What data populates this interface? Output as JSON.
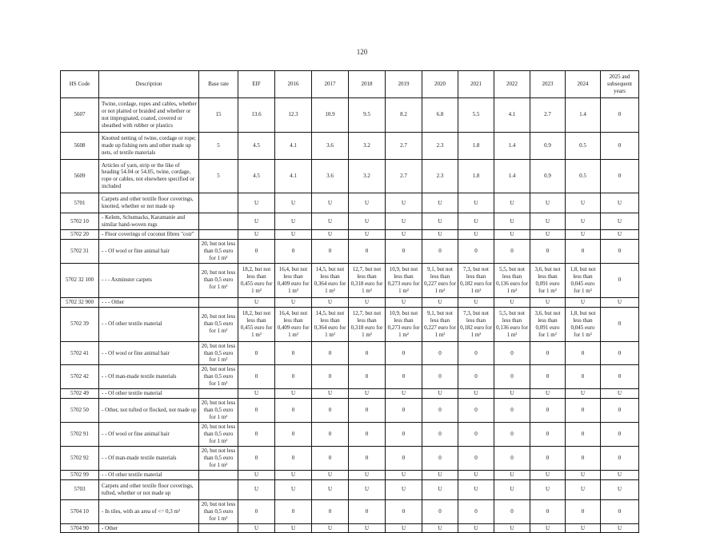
{
  "page": {
    "number": "120"
  },
  "table": {
    "headers": [
      "HS Code",
      "Description",
      "Base rate",
      "EIF",
      "2016",
      "2017",
      "2018",
      "2019",
      "2020",
      "2021",
      "2022",
      "2023",
      "2024",
      "2025 and subsequent years"
    ],
    "rows": [
      {
        "code": "5607",
        "desc": "Twine, cordage, ropes and cables, whether or not plaited or braided and whether or not impregnated, coated, covered or sheathed with rubber or plastics",
        "base": "15",
        "vals": [
          "13.6",
          "12.3",
          "10.9",
          "9.5",
          "8.2",
          "6.8",
          "5.5",
          "4.1",
          "2.7",
          "1.4",
          "0"
        ]
      },
      {
        "code": "5608",
        "desc": "Knotted netting of twine, cordage or rope; made up fishing nets and other made up nets, of textile materials",
        "base": "5",
        "vals": [
          "4.5",
          "4.1",
          "3.6",
          "3.2",
          "2.7",
          "2.3",
          "1.8",
          "1.4",
          "0.9",
          "0.5",
          "0"
        ]
      },
      {
        "code": "5609",
        "desc": "Articles of yarn, strip or the like of heading 54.04 or 54.05, twine, cordage, rope or cables, not elsewhere specified or included",
        "base": "5",
        "vals": [
          "4.5",
          "4.1",
          "3.6",
          "3.2",
          "2.7",
          "2.3",
          "1.8",
          "1.4",
          "0.9",
          "0.5",
          "0"
        ]
      },
      {
        "code": "5701",
        "desc": "Carpets and other textile floor coverings, knotted, whether or not made up",
        "base": "",
        "vals": [
          "U",
          "U",
          "U",
          "U",
          "U",
          "U",
          "U",
          "U",
          "U",
          "U",
          "U"
        ]
      },
      {
        "code": "5702 10",
        "desc": "- Kelem, Schumacks, Karamanie and similar hand-woven rugs",
        "base": "",
        "vals": [
          "U",
          "U",
          "U",
          "U",
          "U",
          "U",
          "U",
          "U",
          "U",
          "U",
          "U"
        ]
      },
      {
        "code": "5702 20",
        "desc": "- Floor coverings of coconut fibres \"coir\"",
        "base": "",
        "vals": [
          "U",
          "U",
          "U",
          "U",
          "U",
          "U",
          "U",
          "U",
          "U",
          "U",
          "U"
        ]
      },
      {
        "code": "5702 31",
        "desc": "- - Of wool or fine animal hair",
        "base": "20, but not less than 0,5 euro for 1 m²",
        "vals": [
          "0",
          "0",
          "0",
          "0",
          "0",
          "0",
          "0",
          "0",
          "0",
          "0",
          "0"
        ]
      },
      {
        "code": "5702 32 100",
        "desc": "- - - Axminster carpets",
        "base": "20, but not less than 0,5 euro for 1 m²",
        "vals": [
          "18,2, but not less than 0,455 euro for 1 m²",
          "16,4, but not less than 0,409 euro for 1 m²",
          "14,5, but not less than 0,364 euro for 1 m²",
          "12,7, but not less than 0,318 euro for 1 m²",
          "10,9, but not less than 0,273 euro for 1 m²",
          "9,1, but not less than 0,227 euro for 1 m²",
          "7,3, but not less than 0,182 euro for 1 m²",
          "5,5, but not less than 0,136 euro for 1 m²",
          "3,6, but not less than 0,091 euro for 1 m²",
          "1,8, but not less than 0,045 euro for 1 m²",
          "0"
        ]
      },
      {
        "code": "5702 32 900",
        "desc": "- - - Other",
        "base": "",
        "vals": [
          "U",
          "U",
          "U",
          "U",
          "U",
          "U",
          "U",
          "U",
          "U",
          "U",
          "U"
        ]
      },
      {
        "code": "5702 39",
        "desc": "- - Of other textile material",
        "base": "20, but not less than 0,5 euro for 1 m²",
        "vals": [
          "18,2, but not less than 0,455 euro for 1 m²",
          "16,4, but not less than 0,409 euro for 1 m²",
          "14,5, but not less than 0,364 euro for 1 m²",
          "12,7, but not less than 0,318 euro for 1 m²",
          "10,9, but not less than 0,273 euro for 1 m²",
          "9,1, but not less than 0,227 euro for 1 m²",
          "7,3, but not less than 0,182 euro for 1 m²",
          "5,5, but not less than 0,136 euro for 1 m²",
          "3,6, but not less than 0,091 euro for 1 m²",
          "1,8, but not less than 0,045 euro for 1 m²",
          "0"
        ]
      },
      {
        "code": "5702 41",
        "desc": "- - Of wool or fine animal hair",
        "base": "20, but not less than 0,5 euro for 1 m²",
        "vals": [
          "0",
          "0",
          "0",
          "0",
          "0",
          "0",
          "0",
          "0",
          "0",
          "0",
          "0"
        ]
      },
      {
        "code": "5702 42",
        "desc": "- - Of man-made textile materials",
        "base": "20, but not less than 0,5 euro for 1 m²",
        "vals": [
          "0",
          "0",
          "0",
          "0",
          "0",
          "0",
          "0",
          "0",
          "0",
          "0",
          "0"
        ]
      },
      {
        "code": "5702 49",
        "desc": "- - Of other textile material",
        "base": "",
        "vals": [
          "U",
          "U",
          "U",
          "U",
          "U",
          "U",
          "U",
          "U",
          "U",
          "U",
          "U"
        ]
      },
      {
        "code": "5702 50",
        "desc": "- Other, not tufted or flocked, not made up",
        "base": "20, but not less than 0,5 euro for 1 m²",
        "vals": [
          "0",
          "0",
          "0",
          "0",
          "0",
          "0",
          "0",
          "0",
          "0",
          "0",
          "0"
        ]
      },
      {
        "code": "5702 91",
        "desc": "- - Of wool or fine animal hair",
        "base": "20, but not less than 0,5 euro for 1 m²",
        "vals": [
          "0",
          "0",
          "0",
          "0",
          "0",
          "0",
          "0",
          "0",
          "0",
          "0",
          "0"
        ]
      },
      {
        "code": "5702 92",
        "desc": "- - Of man-made textile materials",
        "base": "20, but not less than 0,5 euro for 1 m²",
        "vals": [
          "0",
          "0",
          "0",
          "0",
          "0",
          "0",
          "0",
          "0",
          "0",
          "0",
          "0"
        ]
      },
      {
        "code": "5702 99",
        "desc": "- - Of other textile material",
        "base": "",
        "vals": [
          "U",
          "U",
          "U",
          "U",
          "U",
          "U",
          "U",
          "U",
          "U",
          "U",
          "U"
        ]
      },
      {
        "code": "5703",
        "desc": "Carpets and other textile floor coverings, tufted, whether or not made up",
        "base": "",
        "vals": [
          "U",
          "U",
          "U",
          "U",
          "U",
          "U",
          "U",
          "U",
          "U",
          "U",
          "U"
        ]
      },
      {
        "code": "5704 10",
        "desc": "- In tiles, with an area of <= 0,3 m²",
        "base": "20, but not less than 0,5 euro for 1 m²",
        "vals": [
          "0",
          "0",
          "0",
          "0",
          "0",
          "0",
          "0",
          "0",
          "0",
          "0",
          "0"
        ]
      },
      {
        "code": "5704 90",
        "desc": "- Other",
        "base": "",
        "vals": [
          "U",
          "U",
          "U",
          "U",
          "U",
          "U",
          "U",
          "U",
          "U",
          "U",
          "U"
        ]
      }
    ]
  }
}
